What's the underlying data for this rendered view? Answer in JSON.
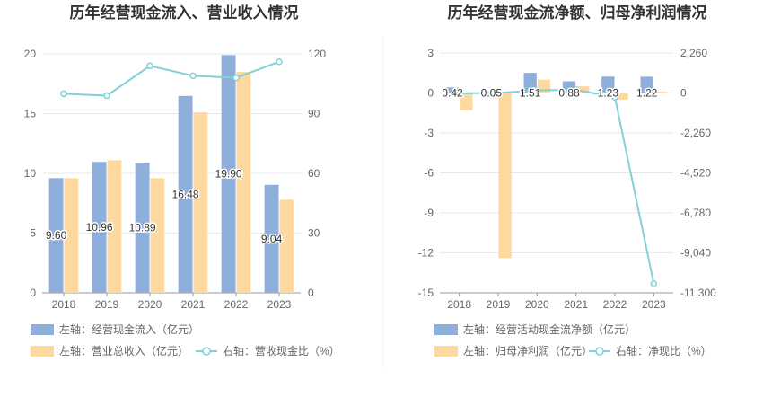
{
  "chart_data": [
    {
      "type": "bar",
      "title": "历年经营现金流入、营业收入情况",
      "categories": [
        "2018",
        "2019",
        "2020",
        "2021",
        "2022",
        "2023"
      ],
      "series": [
        {
          "name": "左轴：经营现金流入（亿元）",
          "type": "bar",
          "axis": "left",
          "values": [
            9.6,
            10.96,
            10.89,
            16.48,
            19.9,
            9.04
          ],
          "color": "#8eaedc",
          "labels": [
            "9.60",
            "10.96",
            "10.89",
            "16.48",
            "19.90",
            "9.04"
          ]
        },
        {
          "name": "左轴：营业总收入（亿元）",
          "type": "bar",
          "axis": "left",
          "values": [
            9.6,
            11.1,
            9.6,
            15.1,
            18.5,
            7.8
          ],
          "color": "#fdd9a0"
        },
        {
          "name": "右轴：营收现金比（%）",
          "type": "line",
          "axis": "right",
          "values": [
            100,
            99,
            114,
            109,
            108,
            116
          ],
          "color": "#82d0d8"
        }
      ],
      "left_axis": {
        "ylim": [
          0,
          20
        ],
        "ticks": [
          "0",
          "5",
          "10",
          "15",
          "20"
        ]
      },
      "right_axis": {
        "ylim": [
          0,
          120
        ],
        "ticks": [
          "0",
          "30",
          "60",
          "90",
          "120"
        ]
      },
      "legend_placement": "bottom-left"
    },
    {
      "type": "bar",
      "title": "历年经营现金流净额、归母净利润情况",
      "categories": [
        "2018",
        "2019",
        "2020",
        "2021",
        "2022",
        "2023"
      ],
      "series": [
        {
          "name": "左轴：经营活动现金流净额（亿元）",
          "type": "bar",
          "axis": "left",
          "values": [
            0.42,
            0.05,
            1.51,
            0.88,
            1.23,
            1.22
          ],
          "color": "#8eaedc",
          "labels": [
            "0.42",
            "0.05",
            "1.51",
            "0.88",
            "1.23",
            "1.22"
          ]
        },
        {
          "name": "左轴：归母净利润（亿元）",
          "type": "bar",
          "axis": "left",
          "values": [
            -1.3,
            -12.4,
            1.0,
            0.5,
            -0.5,
            0.1
          ],
          "color": "#fdd9a0"
        },
        {
          "name": "右轴：净现比（%）",
          "type": "line",
          "axis": "right",
          "values": [
            -20,
            0,
            151,
            176,
            -246,
            -10780
          ],
          "color": "#82d0d8"
        }
      ],
      "left_axis": {
        "ylim": [
          -15,
          3
        ],
        "ticks": [
          "3",
          "0",
          "-3",
          "-6",
          "-9",
          "-12",
          "-15"
        ]
      },
      "right_axis": {
        "ylim": [
          -11300,
          2260
        ],
        "ticks": [
          "2,260",
          "0",
          "-2,260",
          "-4,520",
          "-6,780",
          "-9,040",
          "-11,300"
        ]
      },
      "legend_placement": "bottom-left"
    }
  ]
}
